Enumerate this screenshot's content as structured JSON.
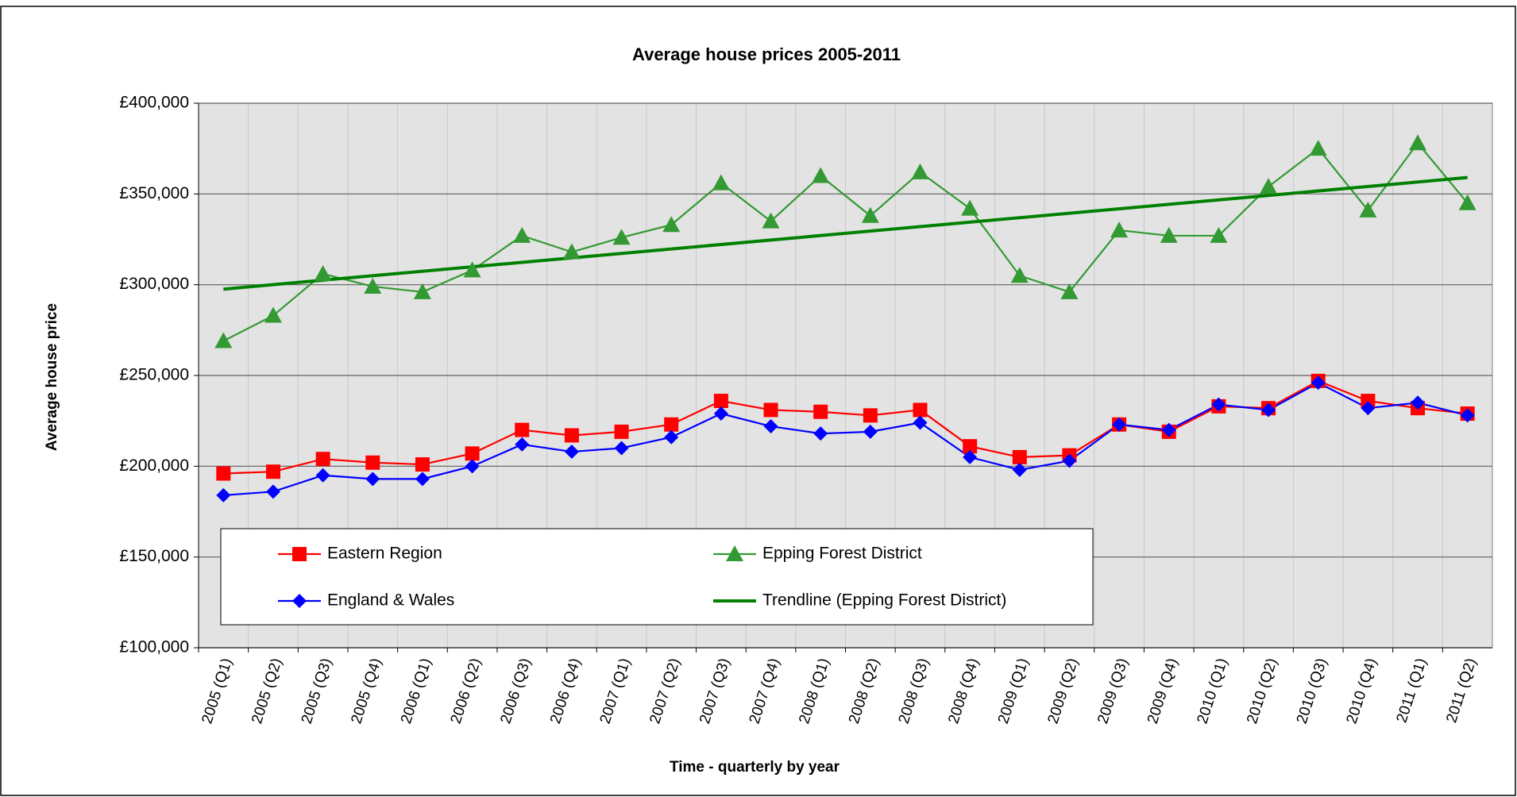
{
  "chart_data": {
    "type": "line",
    "title": "Average house prices 2005-2011",
    "x_label": "Time - quarterly by year",
    "y_label": "Average house price",
    "categories": [
      "2005 (Q1)",
      "2005 (Q2)",
      "2005 (Q3)",
      "2005 (Q4)",
      "2006 (Q1)",
      "2006 (Q2)",
      "2006 (Q3)",
      "2006 (Q4)",
      "2007 (Q1)",
      "2007 (Q2)",
      "2007 (Q3)",
      "2007 (Q4)",
      "2008 (Q1)",
      "2008 (Q2)",
      "2008 (Q3)",
      "2008 (Q4)",
      "2009 (Q1)",
      "2009 (Q2)",
      "2009 (Q3)",
      "2009 (Q4)",
      "2010 (Q1)",
      "2010 (Q2)",
      "2010 (Q3)",
      "2010 (Q4)",
      "2011 (Q1)",
      "2011 (Q2)"
    ],
    "series": [
      {
        "name": "Eastern Region",
        "color": "#ff0000",
        "marker": "square",
        "values": [
          196000,
          197000,
          204000,
          202000,
          201000,
          207000,
          220000,
          217000,
          219000,
          223000,
          236000,
          231000,
          230000,
          228000,
          231000,
          211000,
          205000,
          206000,
          223000,
          219000,
          233000,
          232000,
          247000,
          236000,
          232000,
          229000
        ]
      },
      {
        "name": "Epping Forest District",
        "color": "#339933",
        "marker": "triangle",
        "values": [
          269000,
          283000,
          306000,
          299000,
          296000,
          308000,
          327000,
          318000,
          326000,
          333000,
          356000,
          335000,
          360000,
          338000,
          362000,
          342000,
          305000,
          296000,
          330000,
          327000,
          327000,
          354000,
          375000,
          341000,
          378000,
          345000
        ]
      },
      {
        "name": "England & Wales",
        "color": "#0000ff",
        "marker": "diamond",
        "values": [
          184000,
          186000,
          195000,
          193000,
          193000,
          200000,
          212000,
          208000,
          210000,
          216000,
          229000,
          222000,
          218000,
          219000,
          224000,
          205000,
          198000,
          203000,
          223000,
          220000,
          234000,
          231000,
          246000,
          232000,
          235000,
          228000
        ]
      }
    ],
    "trendline": {
      "name": "Trendline (Epping Forest District)",
      "color": "#008000",
      "series": 1
    },
    "ylim": [
      100000,
      400000
    ],
    "yticks": [
      {
        "value": 100000,
        "label": "£100,000"
      },
      {
        "value": 150000,
        "label": "£150,000"
      },
      {
        "value": 200000,
        "label": "£200,000"
      },
      {
        "value": 250000,
        "label": "£250,000"
      },
      {
        "value": 300000,
        "label": "£300,000"
      },
      {
        "value": 350000,
        "label": "£350,000"
      },
      {
        "value": 400000,
        "label": "£400,000"
      }
    ],
    "grid": true
  }
}
